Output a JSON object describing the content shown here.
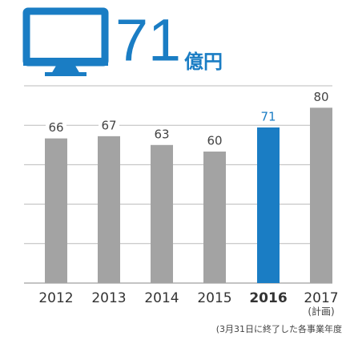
{
  "headline": {
    "value": "71",
    "unit": "億円"
  },
  "chart_data": {
    "type": "bar",
    "categories": [
      "2012",
      "2013",
      "2014",
      "2015",
      "2016",
      "2017"
    ],
    "category_notes": {
      "5": "(計画)"
    },
    "values": [
      66,
      67,
      63,
      60,
      71,
      80
    ],
    "colors": [
      "#a3a3a3",
      "#a3a3a3",
      "#a3a3a3",
      "#a3a3a3",
      "#1a7dc4",
      "#a3a3a3"
    ],
    "ylim": [
      0,
      90
    ],
    "yticks": [
      0,
      18,
      36,
      54,
      72,
      90
    ],
    "grid": true,
    "footnote": "(3月31日に終了した各事業年度"
  }
}
